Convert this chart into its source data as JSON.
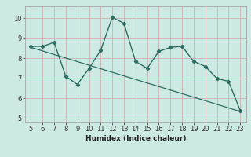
{
  "x": [
    5,
    6,
    7,
    8,
    9,
    10,
    11,
    12,
    13,
    14,
    15,
    16,
    17,
    18,
    19,
    20,
    21,
    22,
    23
  ],
  "y": [
    8.6,
    8.6,
    8.8,
    7.1,
    6.7,
    7.5,
    8.4,
    10.05,
    9.75,
    7.85,
    7.5,
    8.35,
    8.55,
    8.6,
    7.85,
    7.6,
    7.0,
    6.85,
    5.4
  ],
  "trend_x": [
    5,
    23
  ],
  "trend_y": [
    8.55,
    5.35
  ],
  "line_color": "#2e6e62",
  "trend_color": "#2e6e62",
  "bg_color": "#cce9e4",
  "grid_color_major": "#b8d8d3",
  "grid_color_minor": "#daecea",
  "xlabel": "Humidex (Indice chaleur)",
  "ylim": [
    4.8,
    10.6
  ],
  "xlim": [
    4.5,
    23.5
  ],
  "yticks": [
    5,
    6,
    7,
    8,
    9,
    10
  ],
  "xticks": [
    5,
    6,
    7,
    8,
    9,
    10,
    11,
    12,
    13,
    14,
    15,
    16,
    17,
    18,
    19,
    20,
    21,
    22,
    23
  ],
  "label_fontsize": 6.5,
  "tick_fontsize": 6.0
}
